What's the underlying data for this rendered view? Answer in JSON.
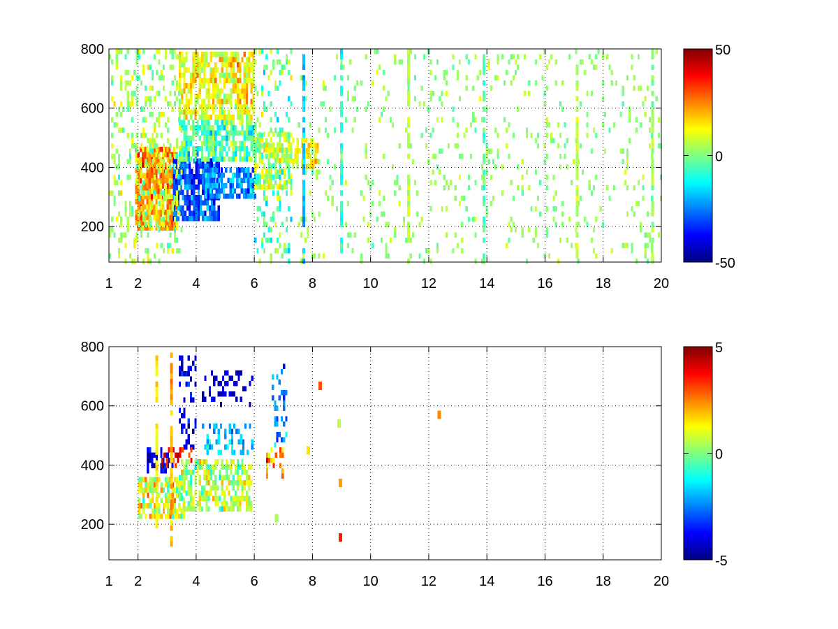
{
  "figure": {
    "background": "#ffffff"
  },
  "chart_data": [
    {
      "type": "heatmap",
      "title": "",
      "xlabel": "",
      "ylabel": "",
      "xlim": [
        1,
        20
      ],
      "ylim": [
        80,
        800
      ],
      "grid": true,
      "xticks": [
        1,
        2,
        4,
        6,
        8,
        10,
        12,
        14,
        16,
        18,
        20
      ],
      "yticks": [
        200,
        400,
        600,
        800
      ],
      "colorbar": {
        "min": -50,
        "max": 50,
        "ticks": [
          50,
          0,
          -50
        ],
        "colormap": "jet",
        "placement": "right"
      },
      "regions": [
        {
          "x": [
            1.9,
            3.3
          ],
          "y": [
            200,
            470
          ],
          "value": 22,
          "density": 0.85,
          "jitter": 12
        },
        {
          "x": [
            3.2,
            4.8
          ],
          "y": [
            220,
            430
          ],
          "value": -30,
          "density": 0.85,
          "jitter": 12
        },
        {
          "x": [
            4.3,
            6.0
          ],
          "y": [
            300,
            400
          ],
          "value": -22,
          "density": 0.8,
          "jitter": 12
        },
        {
          "x": [
            3.4,
            6.0
          ],
          "y": [
            560,
            790
          ],
          "value": 12,
          "density": 0.7,
          "jitter": 12
        },
        {
          "x": [
            3.4,
            6.0
          ],
          "y": [
            430,
            560
          ],
          "value": -5,
          "density": 0.7,
          "jitter": 14
        },
        {
          "x": [
            1.0,
            3.5
          ],
          "y": [
            80,
            800
          ],
          "value": 3,
          "density": 0.25,
          "jitter": 10
        },
        {
          "x": [
            6.0,
            7.3
          ],
          "y": [
            340,
            520
          ],
          "value": 4,
          "density": 0.65,
          "jitter": 14
        },
        {
          "x": [
            6.0,
            7.3
          ],
          "y": [
            80,
            800
          ],
          "value": -2,
          "density": 0.22,
          "jitter": 14
        },
        {
          "x": [
            7.3,
            8.2
          ],
          "y": [
            400,
            500
          ],
          "value": 14,
          "density": 0.5,
          "jitter": 8
        },
        {
          "x": [
            7.5,
            20.0
          ],
          "y": [
            80,
            800
          ],
          "value": 2,
          "density": 0.085,
          "jitter": 6
        }
      ],
      "stripes": [
        {
          "x": 7.7,
          "value": -18
        },
        {
          "x": 9.0,
          "value": -8
        },
        {
          "x": 11.3,
          "value": 6
        },
        {
          "x": 13.9,
          "value": -4
        },
        {
          "x": 17.1,
          "value": 5
        },
        {
          "x": 19.7,
          "value": 3
        }
      ]
    },
    {
      "type": "heatmap",
      "title": "",
      "xlabel": "",
      "ylabel": "",
      "xlim": [
        1,
        20
      ],
      "ylim": [
        80,
        800
      ],
      "grid": true,
      "xticks": [
        1,
        2,
        4,
        6,
        8,
        10,
        12,
        14,
        16,
        18,
        20
      ],
      "yticks": [
        200,
        400,
        600,
        800
      ],
      "colorbar": {
        "min": -5,
        "max": 5,
        "ticks": [
          5,
          0,
          -5
        ],
        "colormap": "jet",
        "placement": "right"
      },
      "regions": [
        {
          "x": [
            2.0,
            3.6
          ],
          "y": [
            220,
            360
          ],
          "value": 1.0,
          "density": 0.7,
          "jitter": 1.6
        },
        {
          "x": [
            3.4,
            5.9
          ],
          "y": [
            260,
            420
          ],
          "value": 0.4,
          "density": 0.6,
          "jitter": 1.4
        },
        {
          "x": [
            2.3,
            3.2
          ],
          "y": [
            380,
            460
          ],
          "value": -4.2,
          "density": 0.55,
          "jitter": 0.8
        },
        {
          "x": [
            3.4,
            4.0
          ],
          "y": [
            460,
            770
          ],
          "value": -4.0,
          "density": 0.35,
          "jitter": 0.8
        },
        {
          "x": [
            4.2,
            5.9
          ],
          "y": [
            600,
            720
          ],
          "value": -4.3,
          "density": 0.3,
          "jitter": 0.6
        },
        {
          "x": [
            4.2,
            5.9
          ],
          "y": [
            440,
            540
          ],
          "value": -1.8,
          "density": 0.35,
          "jitter": 0.9
        },
        {
          "x": [
            2.8,
            3.8
          ],
          "y": [
            380,
            460
          ],
          "value": 3.6,
          "density": 0.35,
          "jitter": 1.2
        },
        {
          "x": [
            6.4,
            7.0
          ],
          "y": [
            370,
            460
          ],
          "value": 2.4,
          "density": 0.5,
          "jitter": 2.0
        },
        {
          "x": [
            6.6,
            7.1
          ],
          "y": [
            460,
            760
          ],
          "value": -2.4,
          "density": 0.25,
          "jitter": 1.2
        }
      ],
      "stripes": [
        {
          "x": 2.65,
          "y": [
            170,
            770
          ],
          "value": 1.5
        },
        {
          "x": 3.15,
          "y": [
            130,
            780
          ],
          "value": 2.0
        }
      ],
      "specks": [
        {
          "x": 7.85,
          "y": 450,
          "value": 1.5
        },
        {
          "x": 8.25,
          "y": 668,
          "value": 3.0
        },
        {
          "x": 8.95,
          "y": 340,
          "value": 2.2
        },
        {
          "x": 8.95,
          "y": 155,
          "value": 3.5
        },
        {
          "x": 8.9,
          "y": 540,
          "value": 0.6
        },
        {
          "x": 12.35,
          "y": 570,
          "value": 2.4
        },
        {
          "x": 6.75,
          "y": 220,
          "value": 0.4
        }
      ]
    }
  ]
}
